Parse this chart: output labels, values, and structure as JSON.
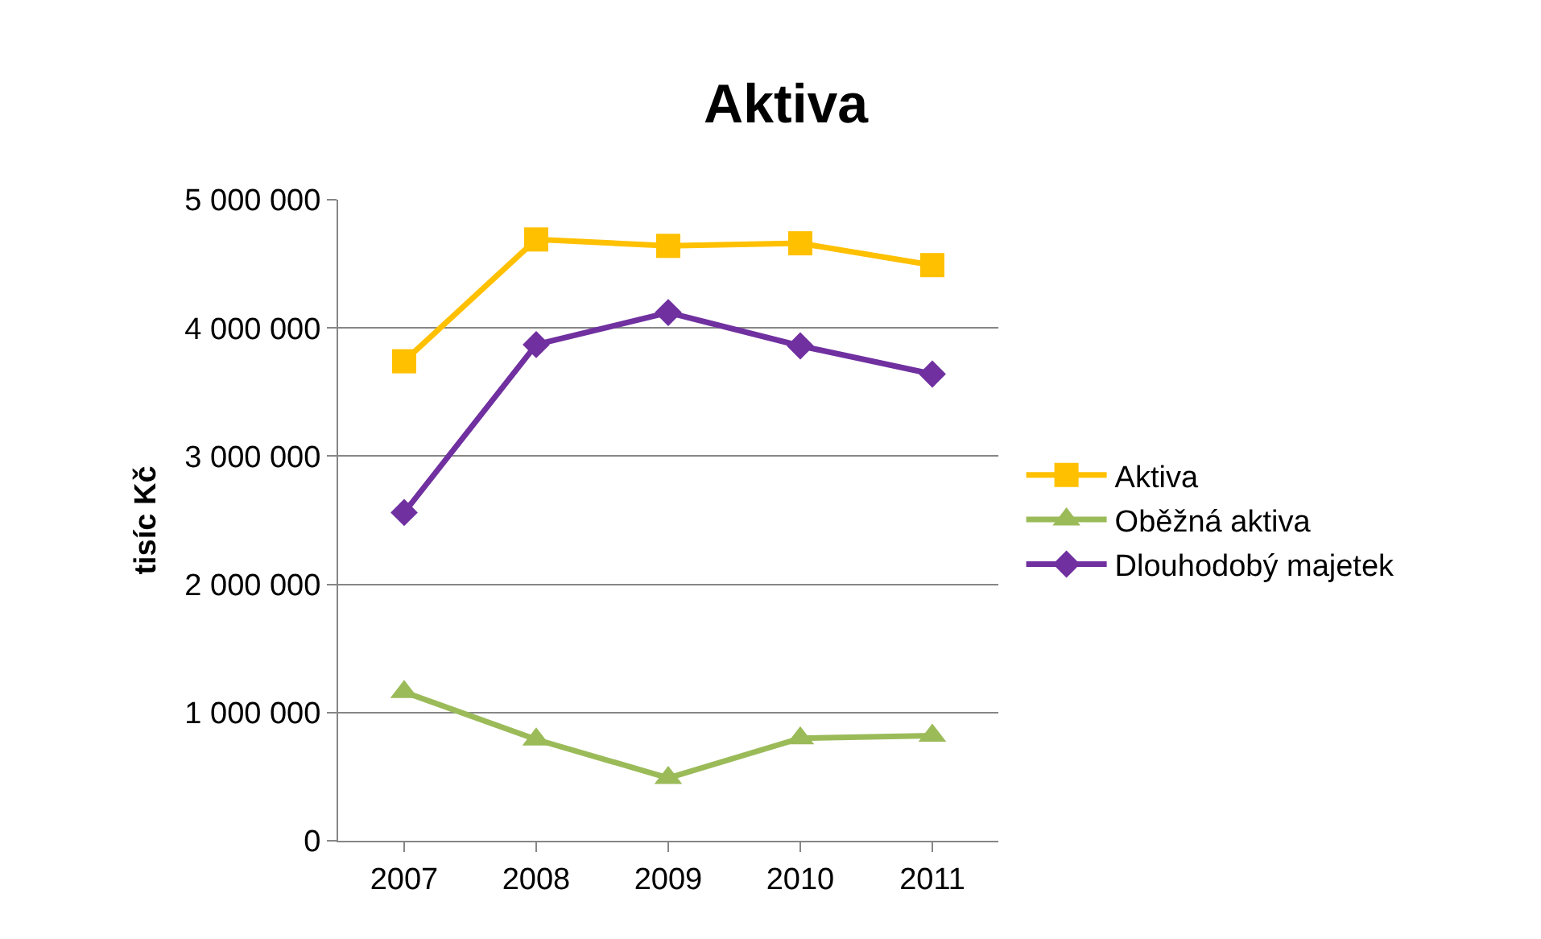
{
  "chart_data": {
    "type": "line",
    "title": "Aktiva",
    "ylabel": "tisíc Kč",
    "categories": [
      "2007",
      "2008",
      "2009",
      "2010",
      "2011"
    ],
    "series": [
      {
        "name": "Aktiva",
        "color": "#ffc000",
        "marker": "square",
        "values": [
          3740000,
          4690000,
          4640000,
          4660000,
          4490000
        ]
      },
      {
        "name": "Oběžná aktiva",
        "color": "#9bbb59",
        "marker": "triangle",
        "values": [
          1160000,
          790000,
          490000,
          800000,
          820000
        ]
      },
      {
        "name": "Dlouhodobý majetek",
        "color": "#7030a0",
        "marker": "diamond",
        "values": [
          2560000,
          3870000,
          4120000,
          3860000,
          3640000
        ]
      }
    ],
    "ylim": [
      0,
      5000000
    ],
    "yticks": [
      0,
      {
        "value": 1000000,
        "label": "1 000 000"
      },
      {
        "value": 2000000,
        "label": "2 000 000"
      },
      {
        "value": 3000000,
        "label": "3 000 000"
      },
      {
        "value": 4000000,
        "label": "4 000 000"
      },
      {
        "value": 5000000,
        "label": "5 000 000"
      }
    ],
    "grid": "y",
    "legend": "right",
    "line_style": "solid"
  }
}
